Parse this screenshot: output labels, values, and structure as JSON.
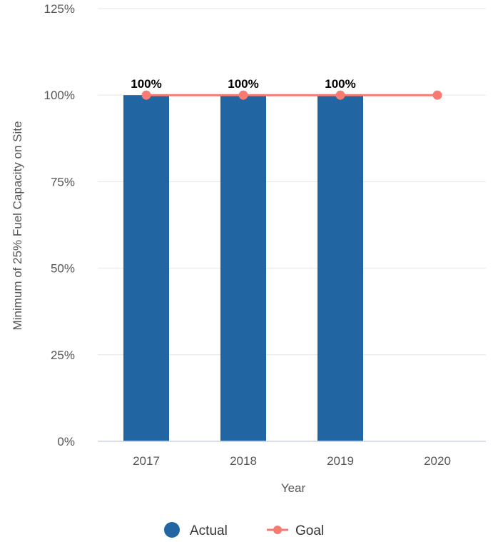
{
  "chart_data": {
    "type": "bar",
    "categories": [
      "2017",
      "2018",
      "2019",
      "2020"
    ],
    "xlabel": "Year",
    "ylabel": "Minimum of 25% Fuel Capacity on Site",
    "ylim": [
      0,
      125
    ],
    "y_ticks": [
      "0%",
      "25%",
      "50%",
      "75%",
      "100%",
      "125%"
    ],
    "y_tick_values": [
      0,
      25,
      50,
      75,
      100,
      125
    ],
    "grid": true,
    "legend_position": "bottom",
    "series": [
      {
        "name": "Actual",
        "type": "bar",
        "color": "#2166a3",
        "values": [
          100,
          100,
          100,
          null
        ],
        "data_labels": [
          "100%",
          "100%",
          "100%",
          ""
        ]
      },
      {
        "name": "Goal",
        "type": "line",
        "color": "#f77b72",
        "values": [
          100,
          100,
          100,
          100
        ]
      }
    ]
  }
}
